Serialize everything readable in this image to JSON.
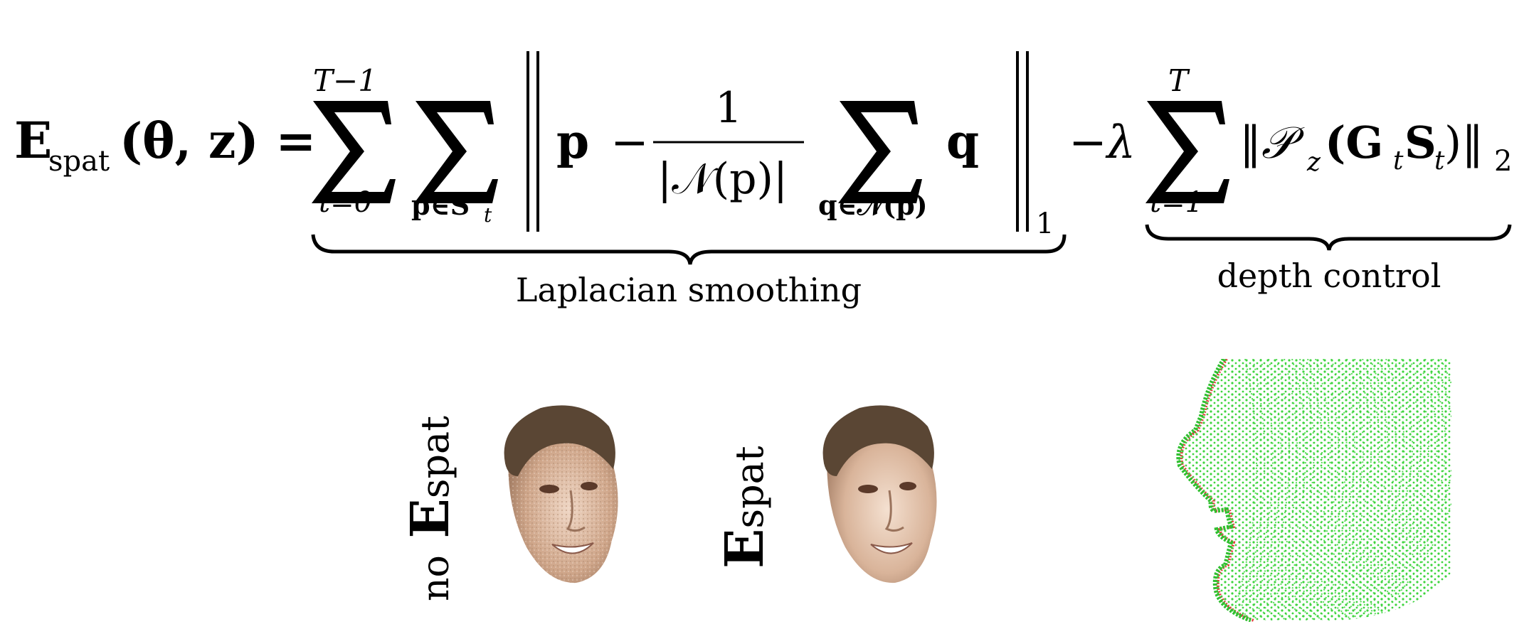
{
  "equation": {
    "lhs_E": "E",
    "lhs_sub": "spat",
    "lhs_args": "(θ, z) =",
    "sum1_upper": "T−1",
    "sum1_lower": "t=0",
    "sum2_lower": "p∈S",
    "sum2_lower_sub": "t",
    "p": "p",
    "minus": "−",
    "frac_num": "1",
    "frac_den": "|𝒩(p)|",
    "sum3_lower": "q∈𝒩(p)",
    "q": "q",
    "norm1_sub": "1",
    "minus_lambda": "−λ",
    "sum4_upper": "T",
    "sum4_lower": "t=1",
    "depth_term": "‖𝒫",
    "depth_term_sub": "z",
    "depth_term_rest": "(G",
    "depth_G_sub": "t",
    "depth_S": "S",
    "depth_S_sub": "t",
    "depth_close": ")‖",
    "norm2_sub": "2",
    "brace1_label": "Laplacian smoothing",
    "brace2_label": "depth control"
  },
  "panels": {
    "label_no": "no",
    "label_E": "E",
    "label_sub": "spat"
  },
  "colors": {
    "skin": "#d8b59c",
    "hair": "#5a4634",
    "points_green": "#3ed43e",
    "points_red": "#e23a3a"
  }
}
